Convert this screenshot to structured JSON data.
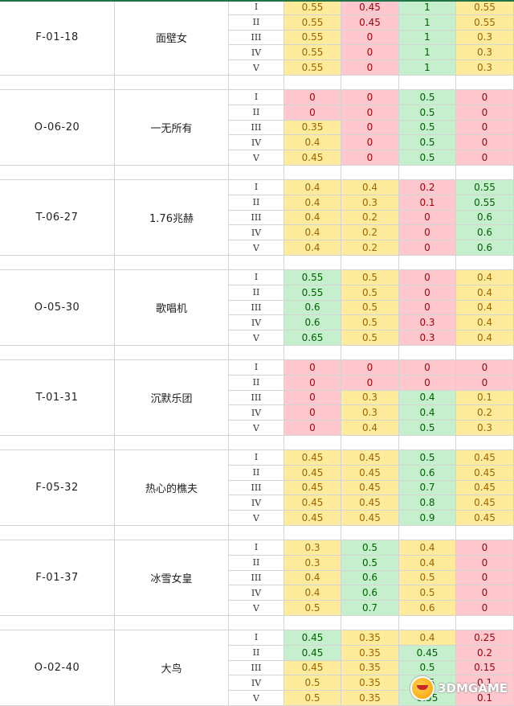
{
  "tiers": [
    "I",
    "II",
    "III",
    "IV",
    "V"
  ],
  "groups": [
    {
      "code": "F-01-18",
      "name": "面壁女",
      "rows": [
        [
          "0.55",
          "0.45",
          "1",
          "0.55"
        ],
        [
          "0.55",
          "0.45",
          "1",
          "0.55"
        ],
        [
          "0.55",
          "0",
          "1",
          "0.3"
        ],
        [
          "0.55",
          "0",
          "1",
          "0.3"
        ],
        [
          "0.55",
          "0",
          "1",
          "0.3"
        ]
      ],
      "colors": [
        [
          "y",
          "r",
          "g",
          "y"
        ],
        [
          "y",
          "r",
          "g",
          "y"
        ],
        [
          "y",
          "r",
          "g",
          "y"
        ],
        [
          "y",
          "r",
          "g",
          "y"
        ],
        [
          "y",
          "r",
          "g",
          "y"
        ]
      ]
    },
    {
      "code": "O-06-20",
      "name": "一无所有",
      "rows": [
        [
          "0",
          "0",
          "0.5",
          "0"
        ],
        [
          "0",
          "0",
          "0.5",
          "0"
        ],
        [
          "0.35",
          "0",
          "0.5",
          "0"
        ],
        [
          "0.4",
          "0",
          "0.5",
          "0"
        ],
        [
          "0.45",
          "0",
          "0.5",
          "0"
        ]
      ],
      "colors": [
        [
          "r",
          "r",
          "g",
          "r"
        ],
        [
          "r",
          "r",
          "g",
          "r"
        ],
        [
          "y",
          "r",
          "g",
          "r"
        ],
        [
          "y",
          "r",
          "g",
          "r"
        ],
        [
          "y",
          "r",
          "g",
          "r"
        ]
      ]
    },
    {
      "code": "T-06-27",
      "name": "1.76兆赫",
      "rows": [
        [
          "0.4",
          "0.4",
          "0.2",
          "0.55"
        ],
        [
          "0.4",
          "0.3",
          "0.1",
          "0.55"
        ],
        [
          "0.4",
          "0.2",
          "0",
          "0.6"
        ],
        [
          "0.4",
          "0.2",
          "0",
          "0.6"
        ],
        [
          "0.4",
          "0.2",
          "0",
          "0.6"
        ]
      ],
      "colors": [
        [
          "y",
          "y",
          "r",
          "g"
        ],
        [
          "y",
          "y",
          "r",
          "g"
        ],
        [
          "y",
          "y",
          "r",
          "g"
        ],
        [
          "y",
          "y",
          "r",
          "g"
        ],
        [
          "y",
          "y",
          "r",
          "g"
        ]
      ]
    },
    {
      "code": "O-05-30",
      "name": "歌唱机",
      "rows": [
        [
          "0.55",
          "0.5",
          "0",
          "0.4"
        ],
        [
          "0.55",
          "0.5",
          "0",
          "0.4"
        ],
        [
          "0.6",
          "0.5",
          "0",
          "0.4"
        ],
        [
          "0.6",
          "0.5",
          "0.3",
          "0.4"
        ],
        [
          "0.65",
          "0.5",
          "0.3",
          "0.4"
        ]
      ],
      "colors": [
        [
          "g",
          "y",
          "r",
          "y"
        ],
        [
          "g",
          "y",
          "r",
          "y"
        ],
        [
          "g",
          "y",
          "r",
          "y"
        ],
        [
          "g",
          "y",
          "r",
          "y"
        ],
        [
          "g",
          "y",
          "r",
          "y"
        ]
      ]
    },
    {
      "code": "T-01-31",
      "name": "沉默乐团",
      "rows": [
        [
          "0",
          "0",
          "0",
          "0"
        ],
        [
          "0",
          "0",
          "0",
          "0"
        ],
        [
          "0",
          "0.3",
          "0.4",
          "0.1"
        ],
        [
          "0",
          "0.3",
          "0.4",
          "0.2"
        ],
        [
          "0",
          "0.4",
          "0.5",
          "0.3"
        ]
      ],
      "colors": [
        [
          "r",
          "r",
          "r",
          "r"
        ],
        [
          "r",
          "r",
          "r",
          "r"
        ],
        [
          "r",
          "y",
          "g",
          "y"
        ],
        [
          "r",
          "y",
          "g",
          "y"
        ],
        [
          "r",
          "y",
          "g",
          "y"
        ]
      ]
    },
    {
      "code": "F-05-32",
      "name": "热心的樵夫",
      "rows": [
        [
          "0.45",
          "0.45",
          "0.5",
          "0.45"
        ],
        [
          "0.45",
          "0.45",
          "0.6",
          "0.45"
        ],
        [
          "0.45",
          "0.45",
          "0.7",
          "0.45"
        ],
        [
          "0.45",
          "0.45",
          "0.8",
          "0.45"
        ],
        [
          "0.45",
          "0.45",
          "0.9",
          "0.45"
        ]
      ],
      "colors": [
        [
          "y",
          "y",
          "g",
          "y"
        ],
        [
          "y",
          "y",
          "g",
          "y"
        ],
        [
          "y",
          "y",
          "g",
          "y"
        ],
        [
          "y",
          "y",
          "g",
          "y"
        ],
        [
          "y",
          "y",
          "g",
          "y"
        ]
      ]
    },
    {
      "code": "F-01-37",
      "name": "冰雪女皇",
      "rows": [
        [
          "0.3",
          "0.5",
          "0.4",
          "0"
        ],
        [
          "0.3",
          "0.5",
          "0.4",
          "0"
        ],
        [
          "0.4",
          "0.6",
          "0.5",
          "0"
        ],
        [
          "0.4",
          "0.6",
          "0.5",
          "0"
        ],
        [
          "0.5",
          "0.7",
          "0.6",
          "0"
        ]
      ],
      "colors": [
        [
          "y",
          "g",
          "y",
          "r"
        ],
        [
          "y",
          "g",
          "y",
          "r"
        ],
        [
          "y",
          "g",
          "y",
          "r"
        ],
        [
          "y",
          "g",
          "y",
          "r"
        ],
        [
          "y",
          "g",
          "y",
          "r"
        ]
      ]
    },
    {
      "code": "O-02-40",
      "name": "大鸟",
      "rows": [
        [
          "0.45",
          "0.35",
          "0.4",
          "0.25"
        ],
        [
          "0.45",
          "0.35",
          "0.45",
          "0.2"
        ],
        [
          "0.45",
          "0.35",
          "0.5",
          "0.15"
        ],
        [
          "0.5",
          "0.35",
          "0.5",
          "0.1"
        ],
        [
          "0.5",
          "0.35",
          "0.55",
          "0.1"
        ]
      ],
      "colors": [
        [
          "g",
          "y",
          "y",
          "r"
        ],
        [
          "g",
          "y",
          "g",
          "r"
        ],
        [
          "y",
          "y",
          "g",
          "r"
        ],
        [
          "y",
          "y",
          "g",
          "r"
        ],
        [
          "y",
          "y",
          "g",
          "r"
        ]
      ]
    }
  ],
  "watermark": {
    "text": "3DMGAME"
  }
}
